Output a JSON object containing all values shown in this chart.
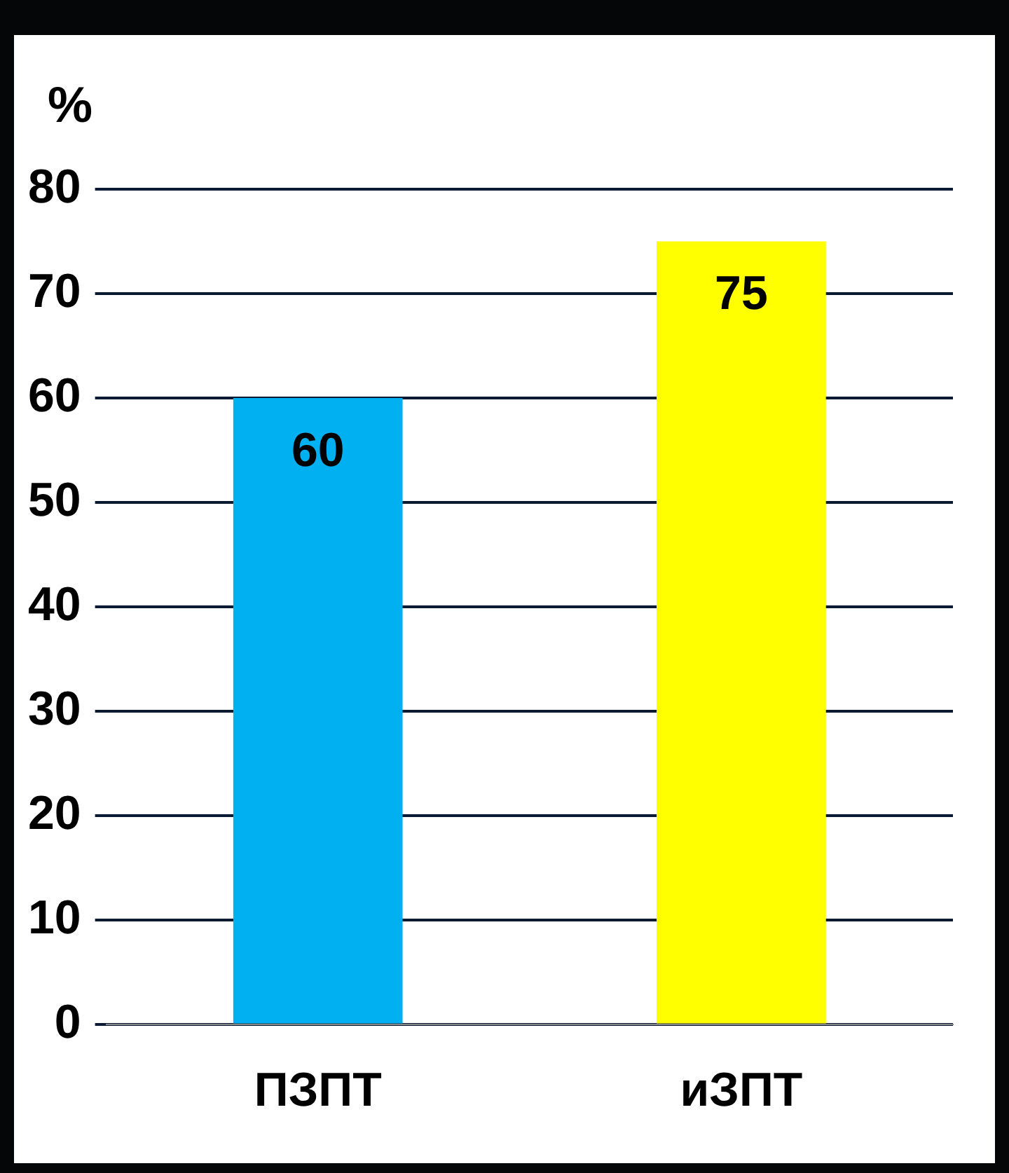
{
  "chart_data": {
    "type": "bar",
    "ylabel": "%",
    "categories": [
      "ПЗПТ",
      "иЗПТ"
    ],
    "values": [
      60,
      75
    ],
    "colors": [
      "#00b0f0",
      "#ffff00"
    ],
    "ylim": [
      0,
      80
    ],
    "yticks": [
      0,
      10,
      20,
      30,
      40,
      50,
      60,
      70,
      80
    ],
    "grid": "y",
    "data_labels": true
  }
}
